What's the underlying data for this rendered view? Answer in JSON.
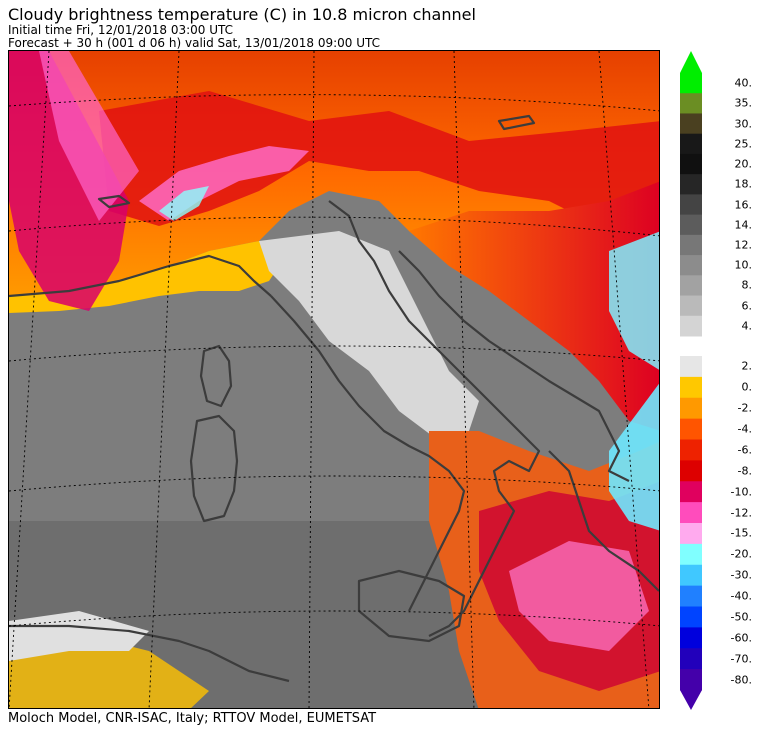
{
  "header": {
    "title": "Cloudy brightness temperature (C) in   10.8 micron channel",
    "initial_time": "Initial time  Fri, 12/01/2018  03:00 UTC",
    "forecast": "Forecast  +  30 h  (001 d 06 h)  valid Sat, 13/01/2018 09:00 UTC"
  },
  "footer": {
    "credit": "Moloch Model, CNR-ISAC, Italy; RTTOV Model, EUMETSAT"
  },
  "colors": {
    "background_gray": "#7a7a7a",
    "coast": "#3c3c3c"
  },
  "colorbar": {
    "labels": [
      "40.",
      "35.",
      "30.",
      "25.",
      "20.",
      "18.",
      "16.",
      "14.",
      "12.",
      "10.",
      "8.",
      "6.",
      "4.",
      "2.",
      "0.",
      "-2.",
      "-4.",
      "-6.",
      "-8.",
      "-10.",
      "-12.",
      "-15.",
      "-20.",
      "-30.",
      "-40.",
      "-50.",
      "-60.",
      "-70.",
      "-80."
    ],
    "colors": [
      "#00ee00",
      "#6b8e23",
      "#4a4020",
      "#181818",
      "#101010",
      "#262626",
      "#444444",
      "#5c5c5c",
      "#777777",
      "#8c8c8c",
      "#a2a2a2",
      "#bababa",
      "#d4d4d4",
      "#e6e6e6",
      "#ffc800",
      "#ff9900",
      "#ff5500",
      "#ee2200",
      "#dd0000",
      "#e0005e",
      "#ff4cbc",
      "#ffaaee",
      "#80ffff",
      "#40c8ff",
      "#2080ff",
      "#0044ff",
      "#0000dd",
      "#2200bb",
      "#4400aa"
    ]
  }
}
